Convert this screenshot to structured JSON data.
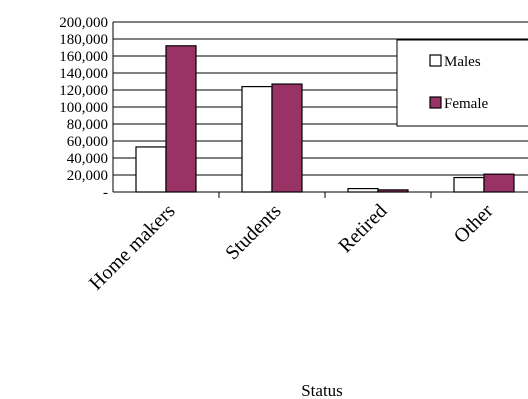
{
  "chart_data": {
    "type": "bar",
    "title": "",
    "xlabel": "Status",
    "ylabel": "",
    "categories": [
      "Home makers",
      "Students",
      "Retired",
      "Other"
    ],
    "series": [
      {
        "name": "Males",
        "values": [
          53000,
          124000,
          4000,
          17000
        ],
        "color": "#ffffff"
      },
      {
        "name": "Female",
        "values": [
          172000,
          127000,
          2500,
          21000
        ],
        "color": "#993366"
      }
    ],
    "ylim": [
      0,
      200000
    ],
    "y_ticks": [
      0,
      20000,
      40000,
      60000,
      80000,
      100000,
      120000,
      140000,
      160000,
      180000,
      200000
    ],
    "y_tick_labels": [
      "-",
      "20,000",
      "40,000",
      "60,000",
      "80,000",
      "100,000",
      "120,000",
      "140,000",
      "160,000",
      "180,000",
      "200,000"
    ],
    "grid": true,
    "legend_position": "top-right"
  }
}
